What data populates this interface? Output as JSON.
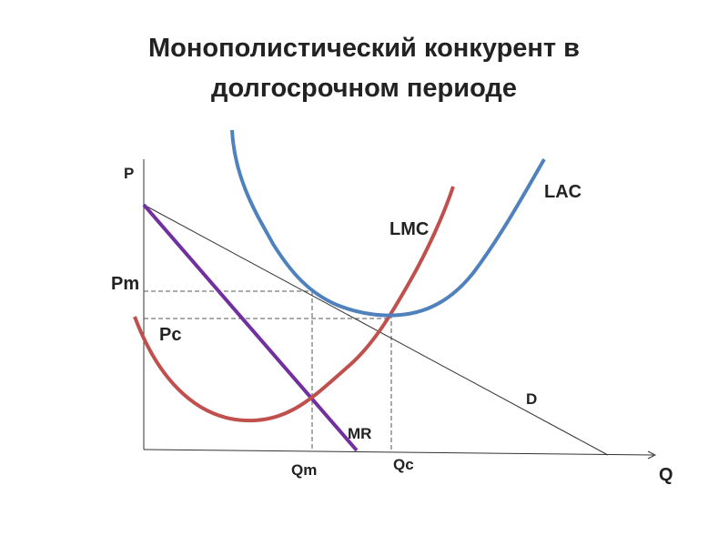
{
  "title": {
    "line1": "Монополистический конкурент в",
    "line2": "долгосрочном периоде"
  },
  "axes": {
    "y": "P",
    "x": "Q"
  },
  "curves": {
    "lac": "LAC",
    "lmc": "LMC",
    "demand": "D",
    "mr": "MR"
  },
  "prices": {
    "monopoly": "Pm",
    "competitive": "Pc"
  },
  "quantities": {
    "monopoly": "Qm",
    "competitive": "Qc"
  }
}
